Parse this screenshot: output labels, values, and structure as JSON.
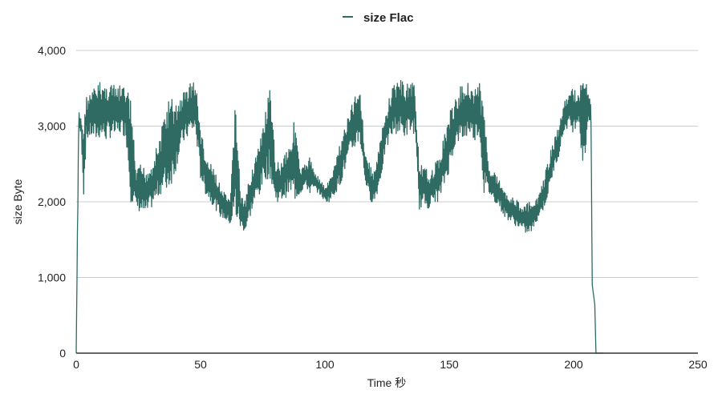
{
  "chart_data": {
    "type": "line",
    "title": "",
    "legend": {
      "position": "top-center",
      "entries": [
        "size Flac"
      ]
    },
    "xlabel": "Time 秒",
    "ylabel": "size Byte",
    "xlim": [
      0,
      250
    ],
    "ylim": [
      0,
      4000
    ],
    "x_ticks": [
      "0",
      "50",
      "100",
      "150",
      "200",
      "250"
    ],
    "y_ticks": [
      "0",
      "1,000",
      "2,000",
      "3,000",
      "4,000"
    ],
    "grid": true,
    "series": [
      {
        "name": "size Flac",
        "color": "#2f6b63",
        "note_envelope": "noisy signal approximated by low/high envelope per time step",
        "envelope": [
          [
            0,
            0,
            0
          ],
          [
            1,
            2900,
            3200
          ],
          [
            2,
            2900,
            3100
          ],
          [
            3,
            2050,
            3000
          ],
          [
            4,
            2800,
            3400
          ],
          [
            6,
            2850,
            3450
          ],
          [
            8,
            2800,
            3550
          ],
          [
            10,
            2850,
            3600
          ],
          [
            12,
            2800,
            3550
          ],
          [
            14,
            2850,
            3600
          ],
          [
            16,
            2850,
            3500
          ],
          [
            18,
            2900,
            3550
          ],
          [
            20,
            2850,
            3500
          ],
          [
            22,
            2000,
            3400
          ],
          [
            24,
            1900,
            2400
          ],
          [
            26,
            1850,
            2500
          ],
          [
            28,
            1800,
            2450
          ],
          [
            30,
            1900,
            2500
          ],
          [
            32,
            2000,
            2700
          ],
          [
            34,
            2100,
            2900
          ],
          [
            36,
            2100,
            3300
          ],
          [
            38,
            2200,
            3400
          ],
          [
            40,
            2400,
            3300
          ],
          [
            42,
            2700,
            3400
          ],
          [
            44,
            2800,
            3500
          ],
          [
            46,
            2900,
            3600
          ],
          [
            48,
            2900,
            3600
          ],
          [
            50,
            2300,
            3000
          ],
          [
            52,
            2100,
            2600
          ],
          [
            54,
            2000,
            2500
          ],
          [
            56,
            1900,
            2400
          ],
          [
            58,
            1800,
            2200
          ],
          [
            60,
            1750,
            2100
          ],
          [
            62,
            1700,
            2000
          ],
          [
            64,
            1700,
            3550
          ],
          [
            66,
            1650,
            2100
          ],
          [
            68,
            1600,
            2000
          ],
          [
            70,
            1800,
            2400
          ],
          [
            72,
            2000,
            2600
          ],
          [
            74,
            2100,
            2800
          ],
          [
            76,
            2300,
            3200
          ],
          [
            78,
            2300,
            3500
          ],
          [
            80,
            2000,
            2600
          ],
          [
            82,
            2000,
            2500
          ],
          [
            84,
            2050,
            2700
          ],
          [
            86,
            2100,
            2800
          ],
          [
            88,
            2000,
            3150
          ],
          [
            90,
            2100,
            2400
          ],
          [
            92,
            2200,
            2500
          ],
          [
            94,
            2100,
            2600
          ],
          [
            96,
            2150,
            2400
          ],
          [
            98,
            2100,
            2300
          ],
          [
            100,
            2000,
            2200
          ],
          [
            102,
            2000,
            2300
          ],
          [
            104,
            2100,
            2500
          ],
          [
            106,
            2200,
            2800
          ],
          [
            108,
            2400,
            3000
          ],
          [
            110,
            2600,
            3200
          ],
          [
            112,
            2700,
            3400
          ],
          [
            114,
            2800,
            3650
          ],
          [
            116,
            2300,
            2700
          ],
          [
            118,
            2000,
            2500
          ],
          [
            120,
            2000,
            2400
          ],
          [
            122,
            2200,
            2800
          ],
          [
            124,
            2600,
            3100
          ],
          [
            126,
            2800,
            3400
          ],
          [
            128,
            2900,
            3600
          ],
          [
            130,
            2900,
            3650
          ],
          [
            132,
            2850,
            3550
          ],
          [
            134,
            2900,
            3600
          ],
          [
            136,
            2900,
            3600
          ],
          [
            138,
            1900,
            2500
          ],
          [
            140,
            1950,
            2450
          ],
          [
            142,
            1900,
            2400
          ],
          [
            144,
            2000,
            2500
          ],
          [
            146,
            2000,
            2600
          ],
          [
            148,
            2200,
            2900
          ],
          [
            150,
            2400,
            3200
          ],
          [
            152,
            2700,
            3300
          ],
          [
            154,
            2800,
            3500
          ],
          [
            156,
            2800,
            3600
          ],
          [
            158,
            2900,
            3600
          ],
          [
            160,
            2800,
            3500
          ],
          [
            162,
            2900,
            3600
          ],
          [
            164,
            2100,
            3200
          ],
          [
            166,
            2100,
            2500
          ],
          [
            168,
            2000,
            2400
          ],
          [
            170,
            1950,
            2300
          ],
          [
            172,
            1800,
            2200
          ],
          [
            174,
            1750,
            2100
          ],
          [
            176,
            1700,
            2050
          ],
          [
            178,
            1650,
            2000
          ],
          [
            180,
            1600,
            1950
          ],
          [
            182,
            1550,
            2000
          ],
          [
            184,
            1650,
            1950
          ],
          [
            186,
            1800,
            2100
          ],
          [
            188,
            1900,
            2300
          ],
          [
            190,
            2100,
            2600
          ],
          [
            192,
            2400,
            2800
          ],
          [
            194,
            2600,
            3000
          ],
          [
            196,
            2900,
            3300
          ],
          [
            198,
            3000,
            3450
          ],
          [
            200,
            2900,
            3500
          ],
          [
            202,
            3100,
            3450
          ],
          [
            204,
            2300,
            3700
          ],
          [
            206,
            3100,
            3500
          ],
          [
            207,
            3000,
            3300
          ],
          [
            207.5,
            900,
            900
          ],
          [
            208.5,
            650,
            650
          ],
          [
            209,
            0,
            0
          ],
          [
            212,
            0,
            0
          ]
        ]
      }
    ]
  }
}
